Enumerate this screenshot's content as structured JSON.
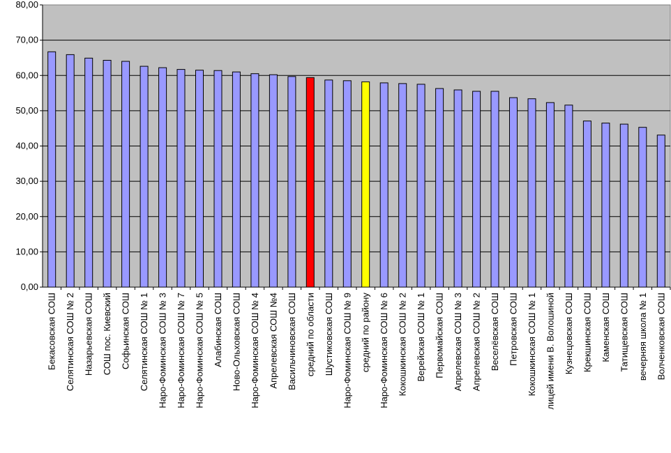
{
  "chart_data": {
    "type": "bar",
    "title": "",
    "xlabel": "",
    "ylabel": "",
    "ylim": [
      0,
      80
    ],
    "yticks": [
      "0,00",
      "10,00",
      "20,00",
      "30,00",
      "40,00",
      "50,00",
      "60,00",
      "70,00",
      "80,00"
    ],
    "grid": true,
    "legend": "none",
    "colors": {
      "plot_background": "#c0c0c0",
      "bar_default": "#9999ff",
      "bar_region_average": "#ff0000",
      "bar_district_average": "#ffff00",
      "bar_outline": "#000000"
    },
    "categories": [
      "Бекасовская СОШ",
      "Селятинская СОШ № 2",
      "Назарьевская СОШ",
      "СОШ  пос. Киевский",
      "Софьинская СОШ",
      "Селятинская СОШ № 1",
      "Наро-Фоминская СОШ № 3",
      "Наро-Фоминская СОШ № 7",
      "Наро-Фоминская СОШ № 5",
      "Алабинская СОШ",
      "Ново-Ольховская СОШ",
      "Наро-Фоминская СОШ № 4",
      "Апрелевская СОШ №4",
      "Васильчиновская СОШ",
      "средний по области",
      "Шустиковская СОШ",
      "Наро-Фоминская СОШ № 9",
      "средний по району",
      "Наро-Фоминская СОШ № 6",
      "Кокошкинская СОШ № 2",
      "Верейская СОШ № 1",
      "Первомайская СОШ",
      "Апрелевская СОШ № 3",
      "Апрелевская СОШ № 2",
      "Веселёвская СОШ",
      "Петровская СОШ",
      "Кокошкинская СОШ № 1",
      "лицей имени  В. Волошиной",
      "Кузнецовская СОШ",
      "Крекшинская СОШ",
      "Каменская СОШ",
      "Татищевская СОШ",
      "вечерняя  школа № 1",
      "Волченковская СОШ"
    ],
    "values": [
      66.7,
      65.9,
      64.9,
      64.3,
      64.0,
      62.6,
      62.2,
      61.7,
      61.5,
      61.4,
      61.0,
      60.5,
      60.2,
      59.7,
      59.4,
      58.7,
      58.5,
      58.2,
      57.9,
      57.7,
      57.5,
      56.3,
      55.9,
      55.5,
      55.5,
      53.7,
      53.4,
      52.3,
      51.6,
      47.1,
      46.5,
      46.2,
      45.3,
      43.1
    ],
    "highlight": {
      "средний по области": "bar_region_average",
      "средний по району": "bar_district_average"
    }
  }
}
